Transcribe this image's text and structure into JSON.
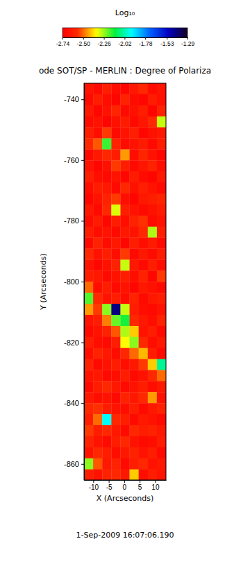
{
  "chart_data": {
    "type": "heatmap",
    "title": "ode SOT/SP - MERLIN : Degree of Polariza",
    "x_label": "X (Arcseconds)",
    "y_label": "Y (Arcseconds)",
    "annotations": [
      "1-Sep-2009 16:07:06.190"
    ],
    "xlim": [
      -13,
      13.5
    ],
    "ylim": [
      -865.3,
      -734.7
    ],
    "xticks": [
      -10,
      -5,
      0,
      5,
      10
    ],
    "yticks": [
      -740,
      -760,
      -780,
      -800,
      -820,
      -840,
      -860
    ],
    "colorbar": {
      "title": "Log₁₀",
      "range": [
        -2.74,
        -1.29
      ],
      "ticks": [
        -2.74,
        {
          "value": -2.5,
          "label": "-2.50"
        },
        -2.26,
        -2.02,
        -1.78,
        -1.53,
        -1.29
      ]
    },
    "x": [
      -11.53,
      -8.58,
      -5.64,
      -2.69,
      0.25,
      3.19,
      6.14,
      9.08,
      12.03
    ],
    "y": [
      -736.5,
      -740.1,
      -743.8,
      -747.4,
      -751.0,
      -754.7,
      -758.3,
      -761.9,
      -765.5,
      -769.2,
      -772.8,
      -776.4,
      -780.1,
      -783.7,
      -787.3,
      -791.0,
      -794.6,
      -798.2,
      -801.9,
      -805.5,
      -809.1,
      -812.8,
      -816.4,
      -820.0,
      -823.7,
      -827.3,
      -830.9,
      -834.5,
      -838.2,
      -841.8,
      -845.4,
      -849.1,
      -852.7,
      -856.3,
      -860.0,
      -863.6
    ],
    "z": [
      [
        -2.66,
        -2.7,
        -2.62,
        -2.68,
        -2.71,
        -2.64,
        -2.58,
        -2.69,
        -2.66
      ],
      [
        -2.7,
        -2.62,
        -2.68,
        -2.72,
        -2.6,
        -2.69,
        -2.71,
        -2.63,
        -2.67
      ],
      [
        -2.64,
        -2.71,
        -2.66,
        -2.59,
        -2.7,
        -2.67,
        -2.62,
        -2.72,
        -2.6
      ],
      [
        -2.69,
        -2.66,
        -2.72,
        -2.67,
        -2.63,
        -2.7,
        -2.65,
        -2.58,
        -2.3
      ],
      [
        -2.62,
        -2.68,
        -2.55,
        -2.7,
        -2.66,
        -2.61,
        -2.71,
        -2.67,
        -2.64
      ],
      [
        -2.58,
        -2.52,
        -2.18,
        -2.6,
        -2.69,
        -2.66,
        -2.63,
        -2.7,
        -2.62
      ],
      [
        -2.7,
        -2.64,
        -2.58,
        -2.62,
        -2.45,
        -2.68,
        -2.59,
        -2.66,
        -2.71
      ],
      [
        -2.66,
        -2.71,
        -2.67,
        -2.55,
        -2.62,
        -2.7,
        -2.65,
        -2.6,
        -2.68
      ],
      [
        -2.61,
        -2.68,
        -2.7,
        -2.66,
        -2.71,
        -2.63,
        -2.69,
        -2.72,
        -2.64
      ],
      [
        -2.68,
        -2.62,
        -2.64,
        -2.7,
        -2.58,
        -2.67,
        -2.61,
        -2.66,
        -2.7
      ],
      [
        -2.71,
        -2.66,
        -2.6,
        -2.55,
        -2.68,
        -2.72,
        -2.64,
        -2.62,
        -2.59
      ],
      [
        -2.64,
        -2.7,
        -2.58,
        -2.32,
        -2.62,
        -2.66,
        -2.7,
        -2.67,
        -2.63
      ],
      [
        -2.69,
        -2.63,
        -2.71,
        -2.62,
        -2.68,
        -2.6,
        -2.56,
        -2.7,
        -2.66
      ],
      [
        -2.62,
        -2.68,
        -2.66,
        -2.7,
        -2.64,
        -2.66,
        -2.58,
        -2.28,
        -2.61
      ],
      [
        -2.7,
        -2.6,
        -2.69,
        -2.64,
        -2.71,
        -2.62,
        -2.68,
        -2.63,
        -2.7
      ],
      [
        -2.58,
        -2.66,
        -2.62,
        -2.68,
        -2.55,
        -2.7,
        -2.64,
        -2.69,
        -2.62
      ],
      [
        -2.66,
        -2.71,
        -2.67,
        -2.6,
        -2.3,
        -2.64,
        -2.7,
        -2.62,
        -2.68
      ],
      [
        -2.62,
        -2.64,
        -2.7,
        -2.66,
        -2.62,
        -2.68,
        -2.6,
        -2.71,
        -2.55
      ],
      [
        -2.5,
        -2.68,
        -2.62,
        -2.7,
        -2.66,
        -2.71,
        -2.64,
        -2.67,
        -2.7
      ],
      [
        -2.2,
        -2.58,
        -2.66,
        -2.62,
        -2.69,
        -2.6,
        -2.7,
        -2.64,
        -2.62
      ],
      [
        -2.45,
        -2.55,
        -2.25,
        -1.42,
        -2.3,
        -2.62,
        -2.68,
        -2.7,
        -2.66
      ],
      [
        -2.66,
        -2.62,
        -2.48,
        -2.22,
        -2.15,
        -2.58,
        -2.64,
        -2.68,
        -2.6
      ],
      [
        -2.7,
        -2.66,
        -2.6,
        -2.52,
        -2.28,
        -2.4,
        -2.66,
        -2.62,
        -2.7
      ],
      [
        -2.62,
        -2.68,
        -2.7,
        -2.62,
        -2.35,
        -2.25,
        -2.58,
        -2.68,
        -2.64
      ],
      [
        -2.68,
        -2.6,
        -2.64,
        -2.69,
        -2.58,
        -2.5,
        -2.42,
        -2.62,
        -2.7
      ],
      [
        -2.6,
        -2.7,
        -2.66,
        -2.62,
        -2.68,
        -2.64,
        -2.55,
        -2.4,
        -2.05
      ],
      [
        -2.66,
        -2.64,
        -2.7,
        -2.68,
        -2.62,
        -2.7,
        -2.66,
        -2.58,
        -2.5
      ],
      [
        -2.7,
        -2.62,
        -2.58,
        -2.64,
        -2.7,
        -2.66,
        -2.62,
        -2.68,
        -2.64
      ],
      [
        -2.64,
        -2.68,
        -2.66,
        -2.7,
        -2.6,
        -2.64,
        -2.58,
        -2.45,
        -2.66
      ],
      [
        -2.58,
        -2.56,
        -2.62,
        -2.66,
        -2.68,
        -2.62,
        -2.7,
        -2.64,
        -2.6
      ],
      [
        -2.62,
        -2.5,
        -1.95,
        -2.58,
        -2.62,
        -2.7,
        -2.64,
        -2.66,
        -2.7
      ],
      [
        -2.55,
        -2.62,
        -2.58,
        -2.64,
        -2.7,
        -2.58,
        -2.62,
        -2.6,
        -2.64
      ],
      [
        -2.6,
        -2.66,
        -2.7,
        -2.62,
        -2.58,
        -2.66,
        -2.7,
        -2.68,
        -2.62
      ],
      [
        -2.66,
        -2.58,
        -2.62,
        -2.68,
        -2.64,
        -2.6,
        -2.66,
        -2.62,
        -2.7
      ],
      [
        -2.25,
        -2.52,
        -2.64,
        -2.6,
        -2.7,
        -2.62,
        -2.58,
        -2.66,
        -2.64
      ],
      [
        -2.62,
        -2.66,
        -2.6,
        -2.58,
        -2.64,
        -2.4,
        -2.68,
        -2.62,
        -2.66
      ]
    ]
  }
}
